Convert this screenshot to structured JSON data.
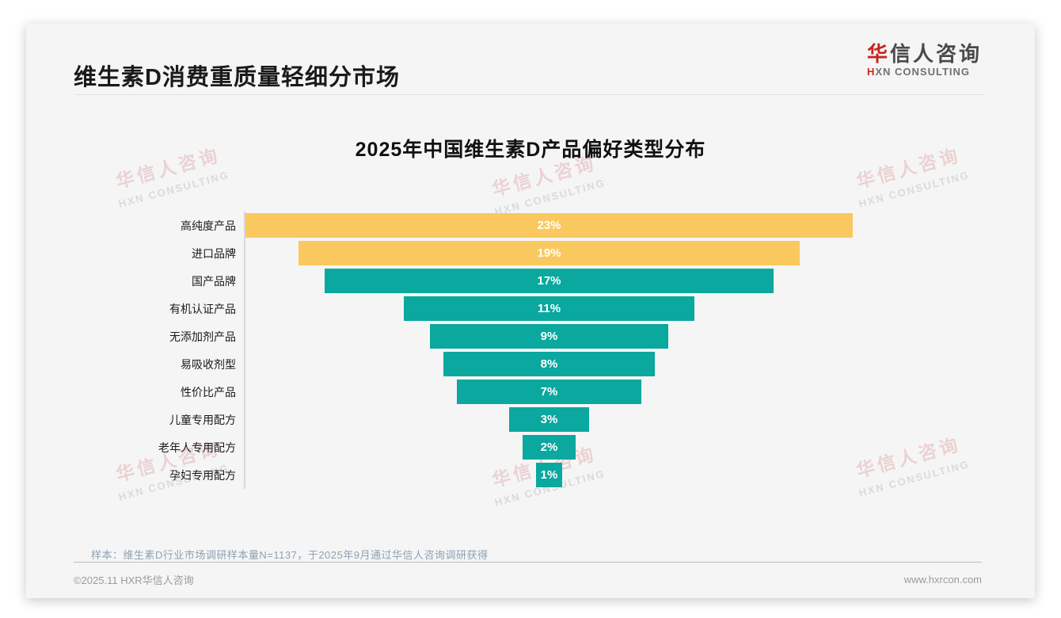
{
  "header": {
    "title": "维生素D消费重质量轻细分市场"
  },
  "logo": {
    "cn_first": "华",
    "cn_rest": "信人咨询",
    "en_first": "H",
    "en_rest": "XN CONSULTING"
  },
  "watermark": {
    "cn": "华信人咨询",
    "en": "HXN CONSULTING"
  },
  "chart_data": {
    "type": "bar",
    "subtype": "horizontal-centered-funnel",
    "title": "2025年中国维生素D产品偏好类型分布",
    "categories": [
      "高纯度产品",
      "进口品牌",
      "国产品牌",
      "有机认证产品",
      "无添加剂产品",
      "易吸收剂型",
      "性价比产品",
      "儿童专用配方",
      "老年人专用配方",
      "孕妇专用配方"
    ],
    "values": [
      23,
      19,
      17,
      11,
      9,
      8,
      7,
      3,
      2,
      1
    ],
    "value_suffix": "%",
    "xlim": [
      0,
      23
    ],
    "highlight_count": 2,
    "colors": {
      "highlight_bar": "#f9c95f",
      "default_bar": "#0aa89e",
      "value_label": "#ffffff",
      "axis_line": "#d8d8d8"
    },
    "grid": false,
    "legend": "none"
  },
  "note": {
    "text": "样本：维生素D行业市场调研样本量N=1137，于2025年9月通过华信人咨询调研获得"
  },
  "footer": {
    "copyright": "©2025.11 HXR华信人咨询",
    "website": "www.hxrcon.com"
  }
}
